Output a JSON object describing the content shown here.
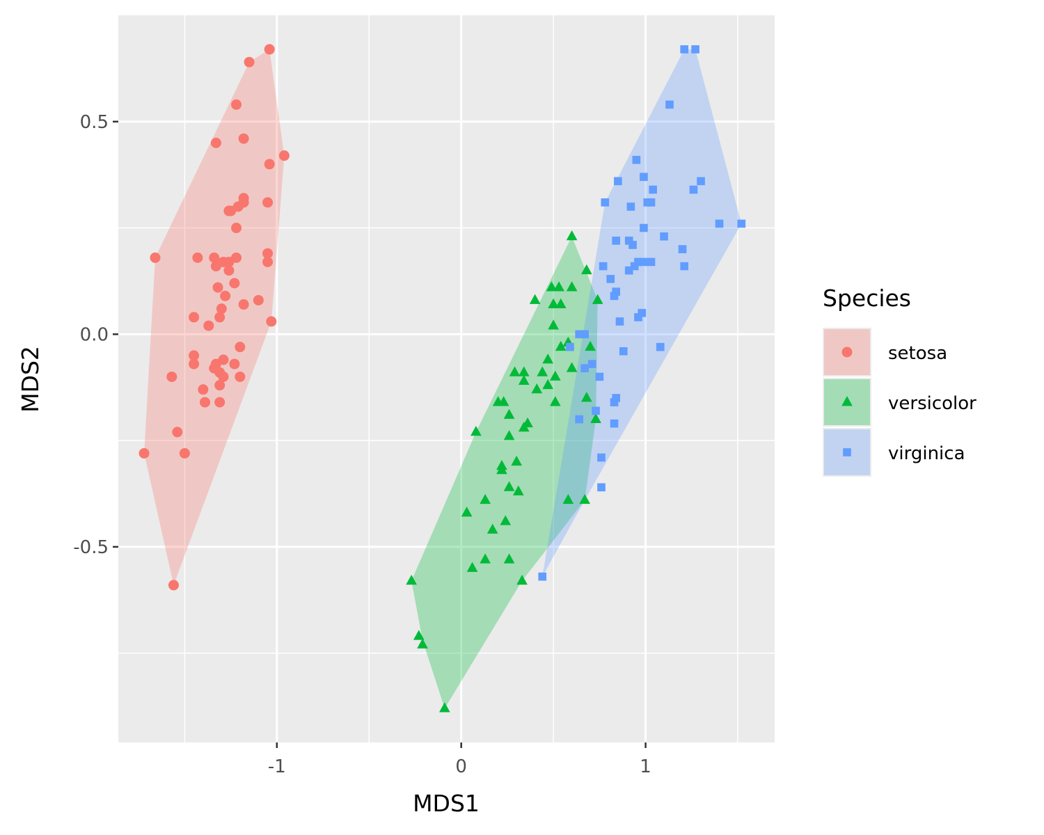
{
  "chart_data": {
    "type": "scatter",
    "xlabel": "MDS1",
    "ylabel": "MDS2",
    "xlim": [
      -1.86,
      1.7
    ],
    "ylim": [
      -0.96,
      0.75
    ],
    "x_ticks": [
      -1,
      0,
      1
    ],
    "x_tick_labels": [
      "-1",
      "0",
      "1"
    ],
    "y_ticks": [
      -0.5,
      0,
      0.5
    ],
    "y_tick_labels": [
      "-0.5",
      "0.0",
      "0.5"
    ],
    "x_minor_ticks": [
      -1.5,
      -0.5,
      0.5,
      1.5
    ],
    "y_minor_ticks": [
      -0.75,
      -0.25,
      0.25
    ],
    "grid": true,
    "legend": {
      "title": "Species",
      "position": "right"
    },
    "colors": {
      "panel": "#EBEBEB",
      "grid": "#FFFFFF",
      "axis_tick": "#333333"
    },
    "series": [
      {
        "name": "setosa",
        "color": "#F8766D",
        "shape": "circle",
        "hull": [
          [
            -1.04,
            0.67
          ],
          [
            -0.96,
            0.42
          ],
          [
            -1.03,
            0.03
          ],
          [
            -1.56,
            -0.59
          ],
          [
            -1.72,
            -0.28
          ],
          [
            -1.66,
            0.18
          ],
          [
            -1.15,
            0.64
          ]
        ],
        "points": [
          [
            -1.04,
            0.67
          ],
          [
            -1.15,
            0.64
          ],
          [
            -1.22,
            0.54
          ],
          [
            -1.33,
            0.45
          ],
          [
            -1.18,
            0.46
          ],
          [
            -0.96,
            0.42
          ],
          [
            -1.04,
            0.4
          ],
          [
            -1.05,
            0.31
          ],
          [
            -1.18,
            0.32
          ],
          [
            -1.18,
            0.31
          ],
          [
            -1.21,
            0.3
          ],
          [
            -1.26,
            0.29
          ],
          [
            -1.25,
            0.29
          ],
          [
            -1.26,
            0.29
          ],
          [
            -1.22,
            0.25
          ],
          [
            -1.66,
            0.18
          ],
          [
            -1.43,
            0.18
          ],
          [
            -1.34,
            0.18
          ],
          [
            -1.29,
            0.17
          ],
          [
            -1.26,
            0.17
          ],
          [
            -1.22,
            0.18
          ],
          [
            -1.05,
            0.19
          ],
          [
            -1.05,
            0.17
          ],
          [
            -1.33,
            0.16
          ],
          [
            -1.26,
            0.15
          ],
          [
            -1.32,
            0.11
          ],
          [
            -1.23,
            0.12
          ],
          [
            -1.28,
            0.09
          ],
          [
            -1.1,
            0.08
          ],
          [
            -1.18,
            0.07
          ],
          [
            -1.3,
            0.06
          ],
          [
            -1.45,
            0.04
          ],
          [
            -1.31,
            0.04
          ],
          [
            -1.03,
            0.03
          ],
          [
            -1.37,
            0.02
          ],
          [
            -1.2,
            -0.03
          ],
          [
            -1.45,
            -0.05
          ],
          [
            -1.45,
            -0.07
          ],
          [
            -1.33,
            -0.07
          ],
          [
            -1.29,
            -0.06
          ],
          [
            -1.34,
            -0.08
          ],
          [
            -1.23,
            -0.07
          ],
          [
            -1.31,
            -0.09
          ],
          [
            -1.57,
            -0.1
          ],
          [
            -1.2,
            -0.1
          ],
          [
            -1.29,
            -0.1
          ],
          [
            -1.31,
            -0.12
          ],
          [
            -1.4,
            -0.13
          ],
          [
            -1.39,
            -0.16
          ],
          [
            -1.31,
            -0.16
          ],
          [
            -1.54,
            -0.23
          ],
          [
            -1.5,
            -0.28
          ],
          [
            -1.72,
            -0.28
          ],
          [
            -1.56,
            -0.59
          ]
        ]
      },
      {
        "name": "versicolor",
        "color": "#00BA38",
        "shape": "triangle",
        "hull": [
          [
            0.6,
            0.23
          ],
          [
            0.74,
            0.08
          ],
          [
            0.73,
            -0.2
          ],
          [
            0.67,
            -0.39
          ],
          [
            0.33,
            -0.58
          ],
          [
            -0.09,
            -0.88
          ],
          [
            -0.21,
            -0.72
          ],
          [
            -0.27,
            -0.58
          ],
          [
            0.08,
            -0.23
          ]
        ],
        "points": [
          [
            0.6,
            0.23
          ],
          [
            0.68,
            0.15
          ],
          [
            0.49,
            0.11
          ],
          [
            0.53,
            0.11
          ],
          [
            0.6,
            0.11
          ],
          [
            0.5,
            0.07
          ],
          [
            0.54,
            0.07
          ],
          [
            0.4,
            0.08
          ],
          [
            0.74,
            0.08
          ],
          [
            0.5,
            0.02
          ],
          [
            0.54,
            -0.03
          ],
          [
            0.58,
            -0.02
          ],
          [
            0.7,
            -0.03
          ],
          [
            0.47,
            -0.06
          ],
          [
            0.6,
            -0.08
          ],
          [
            0.29,
            -0.09
          ],
          [
            0.34,
            -0.09
          ],
          [
            0.44,
            -0.09
          ],
          [
            0.51,
            -0.1
          ],
          [
            0.34,
            -0.11
          ],
          [
            0.47,
            -0.12
          ],
          [
            0.41,
            -0.13
          ],
          [
            0.68,
            -0.15
          ],
          [
            0.2,
            -0.16
          ],
          [
            0.23,
            -0.16
          ],
          [
            0.51,
            -0.16
          ],
          [
            0.26,
            -0.19
          ],
          [
            0.36,
            -0.21
          ],
          [
            0.34,
            -0.22
          ],
          [
            0.08,
            -0.23
          ],
          [
            0.73,
            -0.2
          ],
          [
            0.26,
            -0.24
          ],
          [
            0.3,
            -0.3
          ],
          [
            0.22,
            -0.31
          ],
          [
            0.22,
            -0.32
          ],
          [
            0.26,
            -0.36
          ],
          [
            0.31,
            -0.37
          ],
          [
            0.13,
            -0.39
          ],
          [
            0.58,
            -0.39
          ],
          [
            0.67,
            -0.39
          ],
          [
            0.03,
            -0.42
          ],
          [
            0.24,
            -0.44
          ],
          [
            0.17,
            -0.46
          ],
          [
            0.13,
            -0.53
          ],
          [
            0.26,
            -0.53
          ],
          [
            0.06,
            -0.55
          ],
          [
            0.33,
            -0.58
          ],
          [
            -0.27,
            -0.58
          ],
          [
            -0.23,
            -0.71
          ],
          [
            -0.21,
            -0.73
          ],
          [
            -0.09,
            -0.88
          ]
        ]
      },
      {
        "name": "virginica",
        "color": "#619CFF",
        "shape": "square",
        "hull": [
          [
            1.21,
            0.67
          ],
          [
            1.27,
            0.67
          ],
          [
            1.52,
            0.26
          ],
          [
            0.67,
            -0.39
          ],
          [
            0.44,
            -0.57
          ],
          [
            0.78,
            0.31
          ]
        ],
        "points": [
          [
            1.21,
            0.67
          ],
          [
            1.27,
            0.67
          ],
          [
            1.13,
            0.54
          ],
          [
            0.95,
            0.41
          ],
          [
            0.99,
            0.37
          ],
          [
            0.85,
            0.36
          ],
          [
            1.3,
            0.36
          ],
          [
            1.26,
            0.34
          ],
          [
            1.04,
            0.34
          ],
          [
            1.03,
            0.31
          ],
          [
            1.01,
            0.31
          ],
          [
            0.78,
            0.31
          ],
          [
            0.92,
            0.3
          ],
          [
            1.4,
            0.26
          ],
          [
            1.52,
            0.26
          ],
          [
            0.99,
            0.25
          ],
          [
            1.1,
            0.23
          ],
          [
            0.84,
            0.22
          ],
          [
            0.91,
            0.22
          ],
          [
            0.93,
            0.21
          ],
          [
            1.2,
            0.2
          ],
          [
            1.03,
            0.17
          ],
          [
            0.99,
            0.17
          ],
          [
            0.96,
            0.17
          ],
          [
            0.94,
            0.16
          ],
          [
            0.91,
            0.15
          ],
          [
            0.77,
            0.16
          ],
          [
            1.21,
            0.16
          ],
          [
            0.81,
            0.13
          ],
          [
            0.84,
            0.1
          ],
          [
            0.83,
            0.09
          ],
          [
            0.98,
            0.05
          ],
          [
            0.96,
            0.04
          ],
          [
            0.86,
            0.03
          ],
          [
            0.64,
            0.0
          ],
          [
            0.67,
            0.0
          ],
          [
            1.08,
            -0.03
          ],
          [
            0.59,
            -0.03
          ],
          [
            0.88,
            -0.04
          ],
          [
            0.71,
            -0.07
          ],
          [
            0.67,
            -0.08
          ],
          [
            0.75,
            -0.1
          ],
          [
            0.83,
            -0.16
          ],
          [
            0.84,
            -0.15
          ],
          [
            0.73,
            -0.18
          ],
          [
            0.64,
            -0.2
          ],
          [
            0.83,
            -0.21
          ],
          [
            0.76,
            -0.29
          ],
          [
            0.76,
            -0.36
          ],
          [
            0.44,
            -0.57
          ]
        ]
      }
    ]
  }
}
